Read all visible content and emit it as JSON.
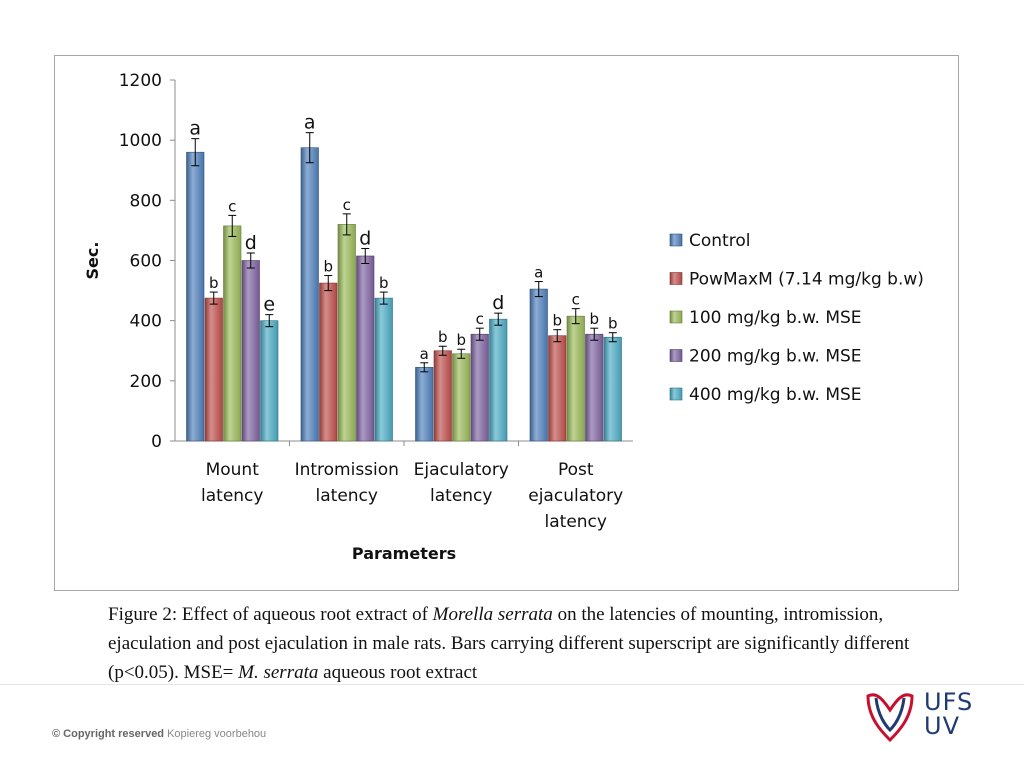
{
  "chart_data": {
    "type": "bar",
    "title": "",
    "xlabel": "Parameters",
    "ylabel": "Sec.",
    "ylim": [
      0,
      1200
    ],
    "yticks": [
      0,
      200,
      400,
      600,
      800,
      1000,
      1200
    ],
    "grid": false,
    "legend_position": "right",
    "categories": [
      [
        "Mount",
        "latency"
      ],
      [
        "Intromission",
        "latency"
      ],
      [
        "Ejaculatory",
        "latency"
      ],
      [
        "Post",
        "ejaculatory",
        "latency"
      ]
    ],
    "series": [
      {
        "name": "Control",
        "color": "#4f81bd",
        "values": [
          960,
          975,
          245,
          505
        ],
        "errors": [
          45,
          50,
          15,
          25
        ],
        "labels": [
          "a",
          "a",
          "a",
          "a"
        ]
      },
      {
        "name": "PowMaxM (7.14 mg/kg b.w)",
        "color": "#c0504d",
        "values": [
          475,
          525,
          300,
          350
        ],
        "errors": [
          20,
          25,
          15,
          20
        ],
        "labels": [
          "b",
          "b",
          "b",
          "b"
        ]
      },
      {
        "name": "100 mg/kg b.w. MSE",
        "color": "#9bbb59",
        "values": [
          715,
          720,
          290,
          415
        ],
        "errors": [
          35,
          35,
          15,
          25
        ],
        "labels": [
          "c",
          "c",
          "b",
          "c"
        ]
      },
      {
        "name": "200 mg/kg b.w. MSE",
        "color": "#8064a2",
        "values": [
          600,
          615,
          355,
          355
        ],
        "errors": [
          25,
          25,
          20,
          20
        ],
        "labels": [
          "d",
          "d",
          "c",
          "b"
        ]
      },
      {
        "name": "400 mg/kg b.w. MSE",
        "color": "#4bacc6",
        "values": [
          400,
          475,
          405,
          345
        ],
        "errors": [
          20,
          20,
          20,
          15
        ],
        "labels": [
          "e",
          "b",
          "d",
          "b"
        ]
      }
    ]
  },
  "caption": {
    "p1": "Figure 2: Effect of aqueous root extract of ",
    "i1": "Morella serrata",
    "p2": " on the latencies of mounting, intromission, ejaculation and post ejaculation in male rats. Bars carrying different superscript are significantly different (p<0.05). MSE= ",
    "i2": "M. serrata",
    "p3": " aqueous root extract"
  },
  "footer": {
    "copyright": "© Copyright reserved",
    "copyright_af": "Kopiereg voorbehou",
    "logo_line1": "UFS",
    "logo_line2": "UV"
  },
  "colors": {
    "logo_blue": "#1f3b70",
    "logo_red": "#c8102e"
  }
}
